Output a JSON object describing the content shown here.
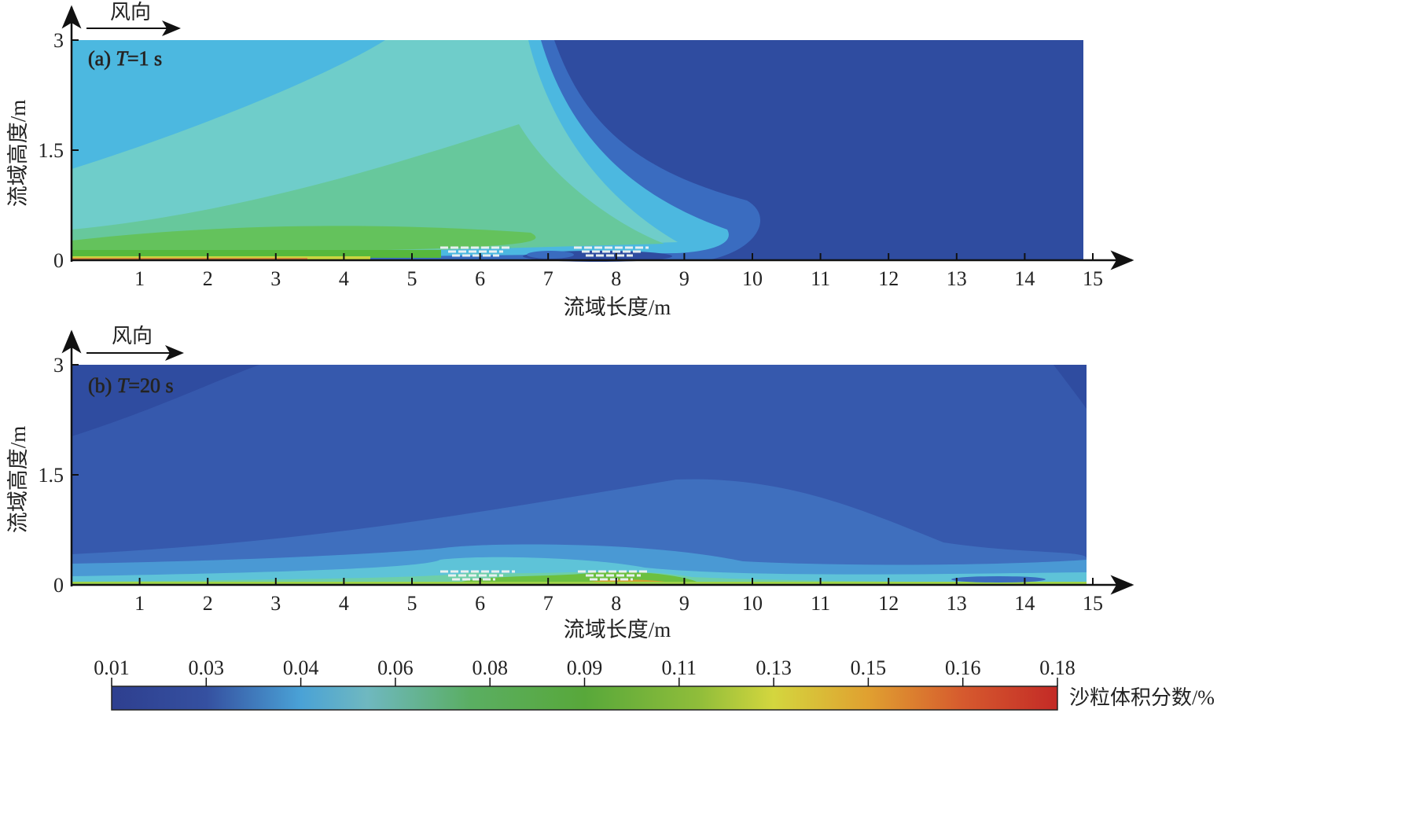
{
  "chart_data": [
    {
      "type": "heatmap",
      "panel_label": "(a) T=1 s",
      "panel_prefix": "(a) ",
      "time_symbol": "T",
      "time_value": "=1 s",
      "wind_label": "风向",
      "xlabel": "流域长度/m",
      "ylabel": "流域高度/m",
      "xlim": [
        0,
        15
      ],
      "ylim": [
        0,
        3
      ],
      "xticks": [
        "1",
        "2",
        "3",
        "4",
        "5",
        "6",
        "7",
        "8",
        "9",
        "10",
        "11",
        "12",
        "13",
        "14",
        "15"
      ],
      "yticks": [
        "0",
        "1.5",
        "3"
      ],
      "fence_positions_m": [
        6,
        8
      ]
    },
    {
      "type": "heatmap",
      "panel_label": "(b) T=20 s",
      "panel_prefix": "(b) ",
      "time_symbol": "T",
      "time_value": "=20 s",
      "wind_label": "风向",
      "xlabel": "流域长度/m",
      "ylabel": "流域高度/m",
      "xlim": [
        0,
        15
      ],
      "ylim": [
        0,
        3
      ],
      "xticks": [
        "1",
        "2",
        "3",
        "4",
        "5",
        "6",
        "7",
        "8",
        "9",
        "10",
        "11",
        "12",
        "13",
        "14",
        "15"
      ],
      "yticks": [
        "0",
        "1.5",
        "3"
      ],
      "fence_positions_m": [
        6,
        8
      ]
    }
  ],
  "colorbar": {
    "label": "沙粒体积分数/%",
    "ticks": [
      "0.01",
      "0.03",
      "0.04",
      "0.06",
      "0.08",
      "0.09",
      "0.11",
      "0.13",
      "0.15",
      "0.16",
      "0.18"
    ],
    "range": [
      0.01,
      0.18
    ],
    "colors": [
      "#2e3f8f",
      "#3a5fb0",
      "#4fb0dc",
      "#72c2c0",
      "#5aae62",
      "#5aa83a",
      "#9cc23a",
      "#d6d83c",
      "#e0a030",
      "#d9602e",
      "#c42a26"
    ]
  }
}
